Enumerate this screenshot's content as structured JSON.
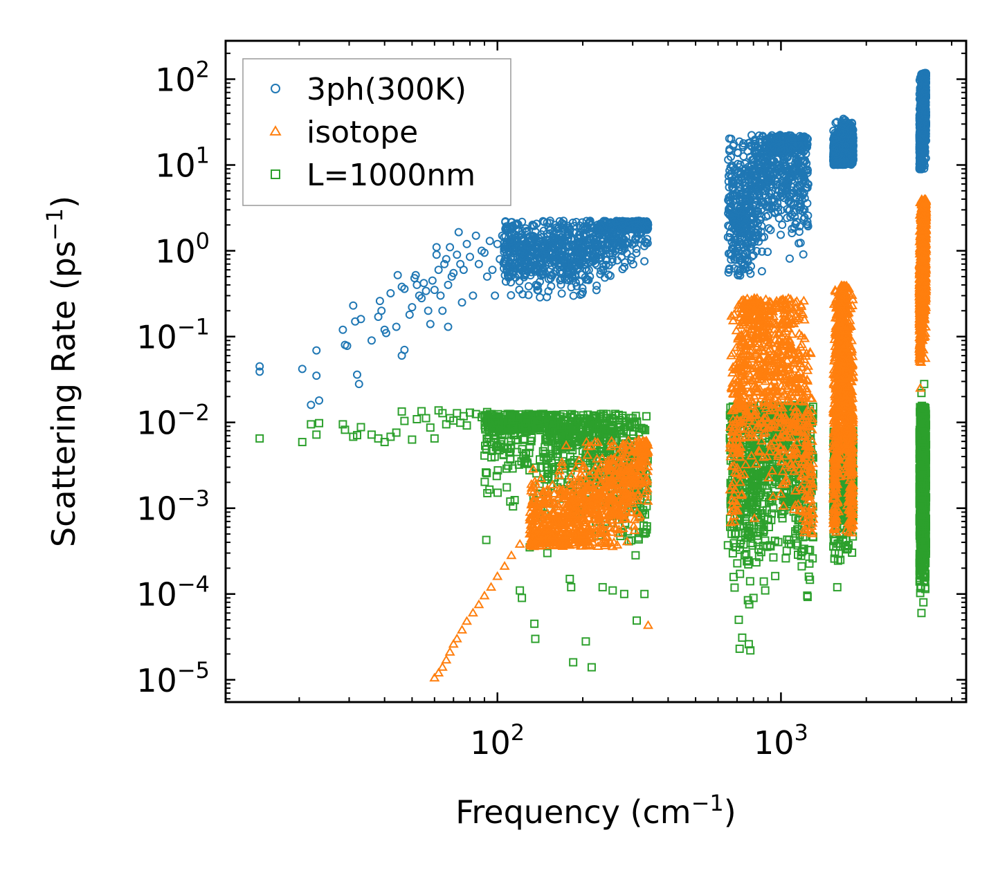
{
  "chart_data": {
    "type": "scatter",
    "title": "",
    "xlabel": "Frequency (cm$^{-1}$)",
    "ylabel": "Scattering Rate (ps$^{-1}$)",
    "xscale": "log",
    "yscale": "log",
    "xlim": [
      11,
      4500
    ],
    "ylim": [
      5.5e-06,
      280
    ],
    "x_ticks": [
      {
        "value": 100,
        "base": "10",
        "exp": "2"
      },
      {
        "value": 1000,
        "base": "10",
        "exp": "3"
      }
    ],
    "y_ticks": [
      {
        "value": 100,
        "base": "10",
        "exp": "2"
      },
      {
        "value": 10,
        "base": "10",
        "exp": "1"
      },
      {
        "value": 1,
        "base": "10",
        "exp": "0"
      },
      {
        "value": 0.1,
        "base": "10",
        "exp": "−1"
      },
      {
        "value": 0.01,
        "base": "10",
        "exp": "−2"
      },
      {
        "value": 0.001,
        "base": "10",
        "exp": "−3"
      },
      {
        "value": 0.0001,
        "base": "10",
        "exp": "−4"
      },
      {
        "value": 1e-05,
        "base": "10",
        "exp": "−5"
      }
    ],
    "legend_position": "top-left",
    "series": [
      {
        "name": "3ph(300K)",
        "marker": "circle",
        "color": "#1f77b4",
        "points": [
          [
            14.5,
            0.045
          ],
          [
            14.5,
            0.039
          ],
          [
            20.5,
            0.042
          ],
          [
            22,
            0.016
          ],
          [
            23,
            0.035
          ],
          [
            23,
            0.069
          ],
          [
            23.5,
            0.018
          ],
          [
            28.5,
            0.12
          ],
          [
            29,
            0.08
          ],
          [
            29.5,
            0.078
          ],
          [
            31,
            0.23
          ],
          [
            31.5,
            0.15
          ],
          [
            32,
            0.036
          ],
          [
            32.5,
            0.028
          ],
          [
            33,
            0.16
          ],
          [
            36,
            0.09
          ],
          [
            38,
            0.17
          ],
          [
            38.5,
            0.26
          ],
          [
            39,
            0.2
          ],
          [
            40,
            0.12
          ],
          [
            40.5,
            0.11
          ],
          [
            42,
            0.32
          ],
          [
            44,
            0.13
          ],
          [
            44.5,
            0.52
          ],
          [
            46,
            0.38
          ],
          [
            46,
            0.06
          ],
          [
            47,
            0.36
          ],
          [
            47,
            0.07
          ],
          [
            49,
            0.18
          ],
          [
            50,
            0.22
          ],
          [
            51,
            0.48
          ],
          [
            51.5,
            0.52
          ],
          [
            52,
            0.4
          ],
          [
            53,
            0.3
          ],
          [
            54,
            0.28
          ],
          [
            55,
            0.42
          ],
          [
            56,
            0.34
          ],
          [
            57,
            0.2
          ],
          [
            58,
            0.14
          ],
          [
            59,
            0.45
          ],
          [
            60,
            0.35
          ],
          [
            61,
            0.9
          ],
          [
            61,
            1.1
          ],
          [
            62,
            0.6
          ],
          [
            63,
            0.3
          ],
          [
            64,
            0.2
          ],
          [
            65,
            0.7
          ],
          [
            66,
            0.8
          ],
          [
            67,
            0.4
          ],
          [
            67,
            0.13
          ],
          [
            68,
            1.1
          ],
          [
            69,
            0.5
          ],
          [
            70,
            0.55
          ],
          [
            72,
            0.9
          ],
          [
            73,
            1.65
          ],
          [
            74,
            0.7
          ],
          [
            75,
            0.25
          ],
          [
            76,
            0.6
          ],
          [
            78,
            1.2
          ],
          [
            80,
            0.85
          ],
          [
            82,
            0.3
          ],
          [
            84,
            1.5
          ],
          [
            86,
            0.7
          ],
          [
            88,
            1.0
          ],
          [
            90,
            0.95
          ],
          [
            92,
            0.5
          ],
          [
            94,
            1.3
          ],
          [
            96,
            0.6
          ],
          [
            98,
            0.3
          ],
          [
            100,
            1.2
          ],
          [
            102,
            0.8
          ],
          [
            104,
            1.5
          ],
          [
            106,
            0.7
          ],
          [
            108,
            1.7
          ],
          [
            110,
            0.95
          ],
          [
            112,
            1.3
          ],
          [
            114,
            1.0
          ]
        ],
        "clusters": [
          {
            "x": [
              105,
              340
            ],
            "y_log": [
              -0.55,
              0.35
            ],
            "center_trend": [
              [
                105,
                0.95
              ],
              [
                200,
                0.95
              ],
              [
                250,
                1.6
              ],
              [
                330,
                3.0
              ]
            ]
          },
          {
            "x": [
              650,
              1250
            ],
            "y_log": [
              -0.3,
              1.35
            ],
            "center_trend": [
              [
                650,
                4.0
              ],
              [
                750,
                2.5
              ],
              [
                950,
                15
              ],
              [
                1150,
                10
              ],
              [
                1250,
                10
              ]
            ]
          },
          {
            "x": [
              1530,
              1800
            ],
            "y_log": [
              1.0,
              1.55
            ],
            "center_trend": [
              [
                1530,
                12
              ],
              [
                1700,
                18
              ],
              [
                1800,
                16
              ]
            ]
          },
          {
            "x": [
              3080,
              3250
            ],
            "y_log": [
              0.95,
              2.08
            ],
            "center_trend": [
              [
                3080,
                20
              ],
              [
                3250,
                70
              ]
            ]
          }
        ]
      },
      {
        "name": "isotope",
        "marker": "triangle",
        "color": "#ff7f0e",
        "points": [
          [
            60,
            1.05e-05
          ],
          [
            62,
            1.2e-05
          ],
          [
            64,
            1.4e-05
          ],
          [
            66,
            1.7e-05
          ],
          [
            68,
            2.1e-05
          ],
          [
            70,
            2.6e-05
          ],
          [
            72,
            3e-05
          ],
          [
            75,
            3.8e-05
          ],
          [
            78,
            4.8e-05
          ],
          [
            82,
            6e-05
          ],
          [
            86,
            7.5e-05
          ],
          [
            90,
            9.5e-05
          ],
          [
            95,
            0.00012
          ],
          [
            100,
            0.00016
          ],
          [
            106,
            0.00021
          ],
          [
            112,
            0.00028
          ],
          [
            120,
            0.00038
          ],
          [
            130,
            0.0005
          ],
          [
            340,
            4.3e-05
          ],
          [
            3100,
            0.025
          ],
          [
            3120,
            0.05
          ],
          [
            3140,
            0.09
          ],
          [
            3180,
            0.07
          ],
          [
            3220,
            0.1
          ]
        ],
        "clusters": [
          {
            "x": [
              130,
              340
            ],
            "y_log": [
              -3.45,
              -2.2
            ],
            "center_trend": [
              [
                130,
                0.0005
              ],
              [
                200,
                0.0008
              ],
              [
                300,
                0.002
              ],
              [
                330,
                0.005
              ]
            ]
          },
          {
            "x": [
              660,
              1300
            ],
            "y_log": [
              -3.3,
              -0.55
            ],
            "center_trend": [
              [
                660,
                0.005
              ],
              [
                760,
                0.1
              ],
              [
                900,
                0.05
              ],
              [
                1050,
                0.05
              ],
              [
                1200,
                0.01
              ],
              [
                1300,
                0.002
              ]
            ]
          },
          {
            "x": [
              1530,
              1800
            ],
            "y_log": [
              -3.3,
              -0.4
            ],
            "center_trend": [
              [
                1530,
                0.003
              ],
              [
                1650,
                0.2
              ],
              [
                1750,
                0.01
              ],
              [
                1800,
                0.003
              ]
            ]
          },
          {
            "x": [
              3080,
              3250
            ],
            "y_log": [
              -1.3,
              0.6
            ],
            "center_trend": [
              [
                3080,
                0.2
              ],
              [
                3150,
                1.0
              ],
              [
                3250,
                1.5
              ]
            ]
          }
        ]
      },
      {
        "name": "L=1000nm",
        "marker": "square",
        "color": "#2ca02c",
        "points": [
          [
            14.5,
            0.0065
          ],
          [
            20.5,
            0.0059
          ],
          [
            22,
            0.0095
          ],
          [
            23,
            0.0072
          ],
          [
            23.5,
            0.0098
          ],
          [
            28.5,
            0.0095
          ],
          [
            29,
            0.0082
          ],
          [
            31,
            0.0068
          ],
          [
            32,
            0.0071
          ],
          [
            33,
            0.0088
          ],
          [
            36,
            0.0072
          ],
          [
            38,
            0.0065
          ],
          [
            40,
            0.0059
          ],
          [
            42,
            0.0068
          ],
          [
            44,
            0.0076
          ],
          [
            46,
            0.0134
          ],
          [
            47,
            0.0104
          ],
          [
            50,
            0.0063
          ],
          [
            52,
            0.0109
          ],
          [
            54,
            0.0135
          ],
          [
            56,
            0.0112
          ],
          [
            58,
            0.0087
          ],
          [
            60,
            0.0065
          ],
          [
            62,
            0.0138
          ],
          [
            64,
            0.0128
          ],
          [
            66,
            0.0095
          ],
          [
            68,
            0.0112
          ],
          [
            70,
            0.0105
          ],
          [
            72,
            0.0128
          ],
          [
            74,
            0.0099
          ],
          [
            76,
            0.0118
          ],
          [
            78,
            0.0092
          ],
          [
            80,
            0.013
          ],
          [
            84,
            0.0125
          ],
          [
            88,
            0.0115
          ],
          [
            92,
            0.0132
          ],
          [
            96,
            0.0118
          ],
          [
            120,
            0.00011
          ],
          [
            122,
            9e-05
          ],
          [
            130,
            0.00035
          ],
          [
            135,
            4.5e-05
          ],
          [
            136,
            3e-05
          ],
          [
            150,
            0.0003
          ],
          [
            180,
            0.00015
          ],
          [
            182,
            0.00012
          ],
          [
            185,
            1.6e-05
          ],
          [
            205,
            2.8e-05
          ],
          [
            215,
            1.4e-05
          ],
          [
            235,
            0.00012
          ],
          [
            255,
            0.00011
          ],
          [
            280,
            0.0001
          ],
          [
            310,
            4.9e-05
          ],
          [
            330,
            0.0001
          ],
          [
            650,
            0.00037
          ],
          [
            710,
            5e-05
          ],
          [
            715,
            2.3e-05
          ],
          [
            730,
            3.1e-05
          ],
          [
            770,
            2.6e-05
          ],
          [
            780,
            2.2e-05
          ],
          [
            800,
            9e-05
          ],
          [
            870,
            0.00014
          ],
          [
            880,
            0.00011
          ],
          [
            1040,
            0.00026
          ],
          [
            1550,
            0.0003
          ],
          [
            1580,
            0.00012
          ],
          [
            1620,
            0.00025
          ],
          [
            3130,
            6e-05
          ],
          [
            3180,
            8e-05
          ],
          [
            3200,
            0.028
          ],
          [
            3130,
            0.022
          ]
        ],
        "clusters": [
          {
            "x": [
              90,
              340
            ],
            "y_log": [
              -3.6,
              -1.9
            ],
            "center_trend": [
              [
                90,
                0.011
              ],
              [
                150,
                0.009
              ],
              [
                250,
                0.005
              ],
              [
                330,
                0.002
              ]
            ]
          },
          {
            "x": [
              660,
              1300
            ],
            "y_log": [
              -4.2,
              -1.8
            ],
            "center_trend": [
              [
                660,
                0.003
              ],
              [
                760,
                0.002
              ],
              [
                900,
                0.006
              ],
              [
                1050,
                0.008
              ],
              [
                1200,
                0.003
              ],
              [
                1300,
                0.002
              ]
            ]
          },
          {
            "x": [
              1530,
              1800
            ],
            "y_log": [
              -3.7,
              -2.1
            ],
            "center_trend": [
              [
                1530,
                0.002
              ],
              [
                1650,
                0.004
              ],
              [
                1800,
                0.003
              ]
            ]
          },
          {
            "x": [
              3080,
              3250
            ],
            "y_log": [
              -4.0,
              -1.8
            ],
            "center_trend": [
              [
                3080,
                0.001
              ],
              [
                3150,
                0.003
              ],
              [
                3250,
                0.002
              ]
            ]
          }
        ]
      }
    ]
  }
}
